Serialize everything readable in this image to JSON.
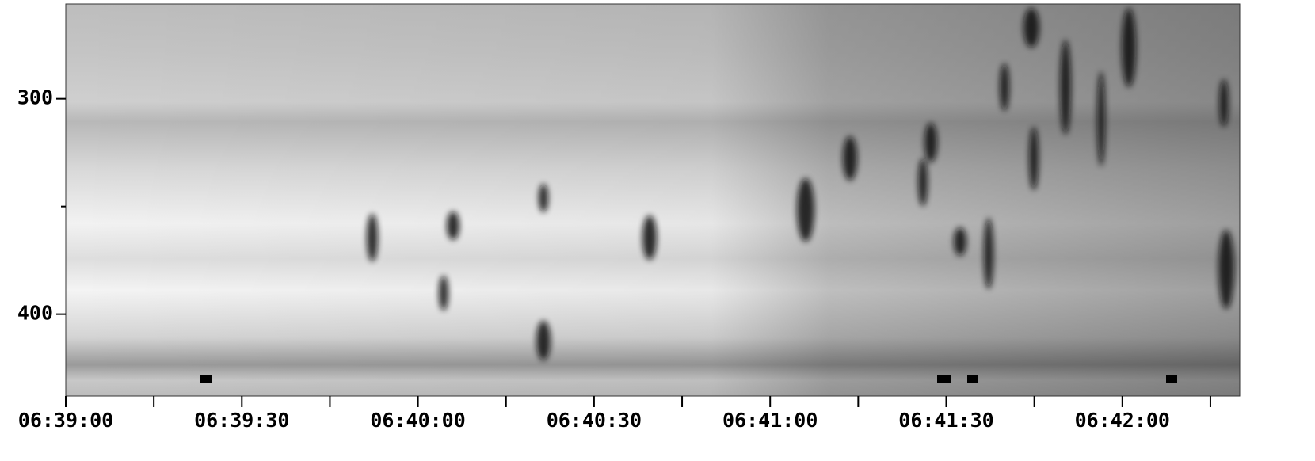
{
  "chart_data": {
    "type": "spectrogram",
    "ylim": [
      256,
      438
    ],
    "yticks": [
      300,
      400
    ],
    "yminorticks": [
      350
    ],
    "xlim": [
      "06:39:00",
      "06:42:20"
    ],
    "xticks": [
      "06:39:00",
      "06:39:30",
      "06:40:00",
      "06:40:30",
      "06:41:00",
      "06:41:30",
      "06:42:00"
    ],
    "xminorticks": [
      "06:39:15",
      "06:39:45",
      "06:40:15",
      "06:40:45",
      "06:41:15",
      "06:41:45",
      "06:42:15"
    ]
  }
}
